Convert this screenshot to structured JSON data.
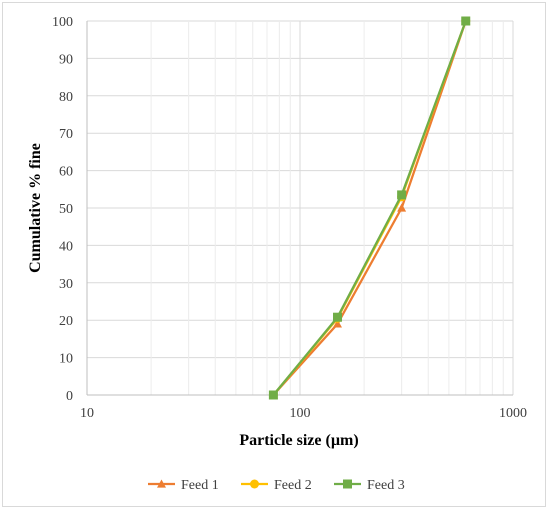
{
  "chart_data": {
    "type": "line",
    "xscale": "log",
    "xlim": [
      10,
      1000
    ],
    "ylim": [
      0,
      100
    ],
    "y_ticks": [
      0,
      10,
      20,
      30,
      40,
      50,
      60,
      70,
      80,
      90,
      100
    ],
    "x_ticks": [
      10,
      100,
      1000
    ],
    "xlabel": "Particle size (µm)",
    "ylabel": "Cumulative % fine",
    "grid": true,
    "legend_position": "bottom",
    "series": [
      {
        "name": "Feed 1",
        "color": "#ED7D31",
        "marker": "triangle",
        "x": [
          75,
          150,
          300,
          600
        ],
        "y": [
          0,
          19,
          50,
          100
        ]
      },
      {
        "name": "Feed 2",
        "color": "#FFC000",
        "marker": "circle",
        "x": [
          75,
          150,
          300,
          600
        ],
        "y": [
          0,
          20.5,
          53,
          100
        ]
      },
      {
        "name": "Feed 3",
        "color": "#70AD47",
        "marker": "square",
        "x": [
          75,
          150,
          300,
          600
        ],
        "y": [
          0,
          20.8,
          53.5,
          100
        ]
      }
    ]
  }
}
